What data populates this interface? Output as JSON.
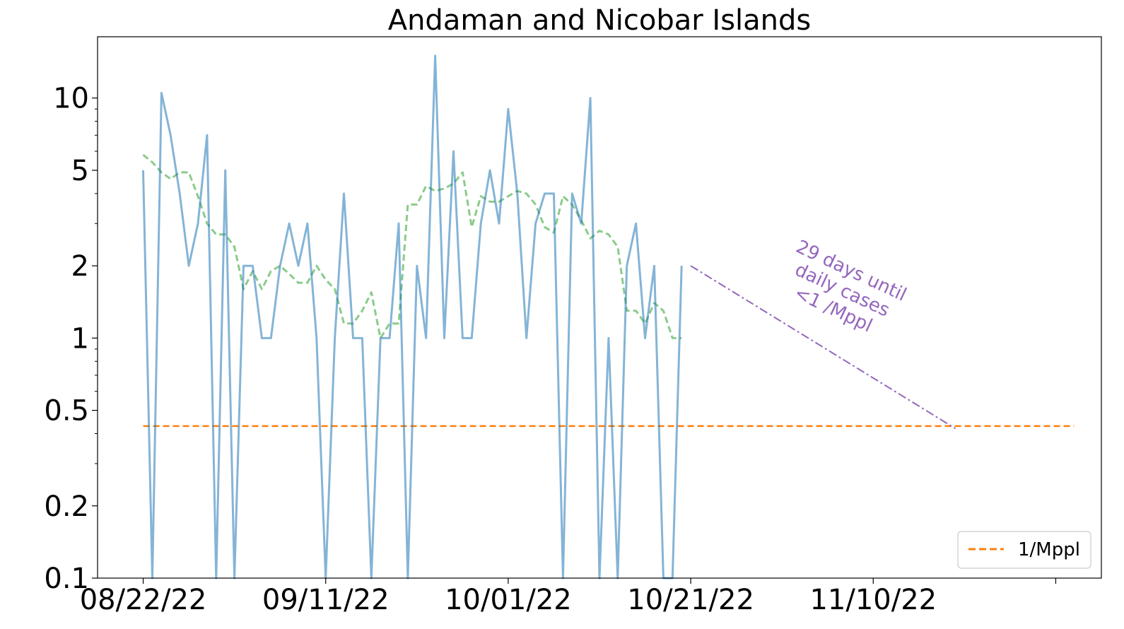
{
  "chart_data": {
    "type": "line",
    "title": "Andaman and Nicobar Islands",
    "xlabel": "",
    "ylabel": "",
    "y_scale": "log",
    "ylim": [
      0.1,
      18
    ],
    "xlim": [
      "2022-08-17",
      "2022-12-05"
    ],
    "x_tick_labels": [
      "08/22/22",
      "09/11/22",
      "10/01/22",
      "10/21/22",
      "11/10/22",
      ""
    ],
    "x_tick_dates": [
      "2022-08-22",
      "2022-09-11",
      "2022-10-01",
      "2022-10-21",
      "2022-11-10",
      "2022-11-30"
    ],
    "y_major_ticks": [
      {
        "value": 0.1,
        "label": "0.1"
      },
      {
        "value": 0.2,
        "label": "0.2"
      },
      {
        "value": 0.5,
        "label": "0.5"
      },
      {
        "value": 1,
        "label": "1"
      },
      {
        "value": 2,
        "label": "2"
      },
      {
        "value": 5,
        "label": "5"
      },
      {
        "value": 10,
        "label": "10"
      }
    ],
    "y_minor_ticks": [
      0.3,
      0.4,
      0.6,
      0.7,
      0.8,
      0.9,
      3,
      4,
      6,
      7,
      8,
      9
    ],
    "grid": false,
    "legend_position": "bottom-right",
    "series": [
      {
        "role": "daily",
        "style": "solid",
        "color": "#1f77b4",
        "opacity": 0.55,
        "start_date": "2022-08-22",
        "values": [
          5,
          0,
          10.5,
          7,
          4,
          2,
          3,
          7,
          0,
          5,
          0,
          2,
          2,
          1,
          1,
          2,
          3,
          2,
          3,
          1,
          0,
          1,
          4,
          1,
          1,
          0,
          1,
          1,
          3,
          0,
          2,
          1,
          15,
          1,
          6,
          1,
          1,
          3,
          5,
          3,
          9,
          4,
          1,
          3,
          4,
          4,
          0,
          4,
          3,
          10,
          0,
          1,
          0,
          2,
          3,
          1,
          2,
          0,
          0,
          2
        ]
      },
      {
        "role": "average",
        "style": "dashed",
        "color": "#2ca02c",
        "opacity": 0.55,
        "start_date": "2022-08-22",
        "values": [
          5.8,
          5.4,
          4.9,
          4.6,
          4.9,
          4.9,
          3.9,
          3.0,
          2.7,
          2.7,
          2.4,
          1.6,
          1.9,
          1.6,
          1.9,
          2.0,
          1.85,
          1.7,
          1.7,
          2.0,
          1.75,
          1.6,
          1.15,
          1.15,
          1.3,
          1.55,
          1.0,
          1.15,
          1.15,
          3.6,
          3.6,
          4.3,
          4.1,
          4.2,
          4.4,
          4.9,
          2.9,
          3.9,
          3.7,
          3.7,
          3.9,
          4.1,
          4.0,
          3.6,
          2.9,
          2.75,
          3.9,
          3.6,
          3.1,
          2.6,
          2.8,
          2.7,
          2.4,
          1.3,
          1.3,
          1.15,
          1.4,
          1.3,
          1.0,
          1.0
        ]
      },
      {
        "name": "1/Mppl",
        "role": "threshold",
        "style": "dashed",
        "color": "#ff7f0e",
        "value": 0.43,
        "x_start": "2022-08-22",
        "x_end": "2022-12-02"
      },
      {
        "role": "projection",
        "style": "dashdot",
        "color": "#9467bd",
        "x_start": "2022-10-21",
        "y_start": 2,
        "x_end": "2022-11-19",
        "y_end": 0.42
      }
    ],
    "legend": [
      {
        "label": "1/Mppl",
        "color": "#ff7f0e",
        "style": "dashed"
      }
    ],
    "annotation": {
      "lines": [
        "29 days until",
        "daily cases",
        "<1 /Mppl"
      ],
      "color": "#9467bd",
      "rotation": 25
    }
  }
}
